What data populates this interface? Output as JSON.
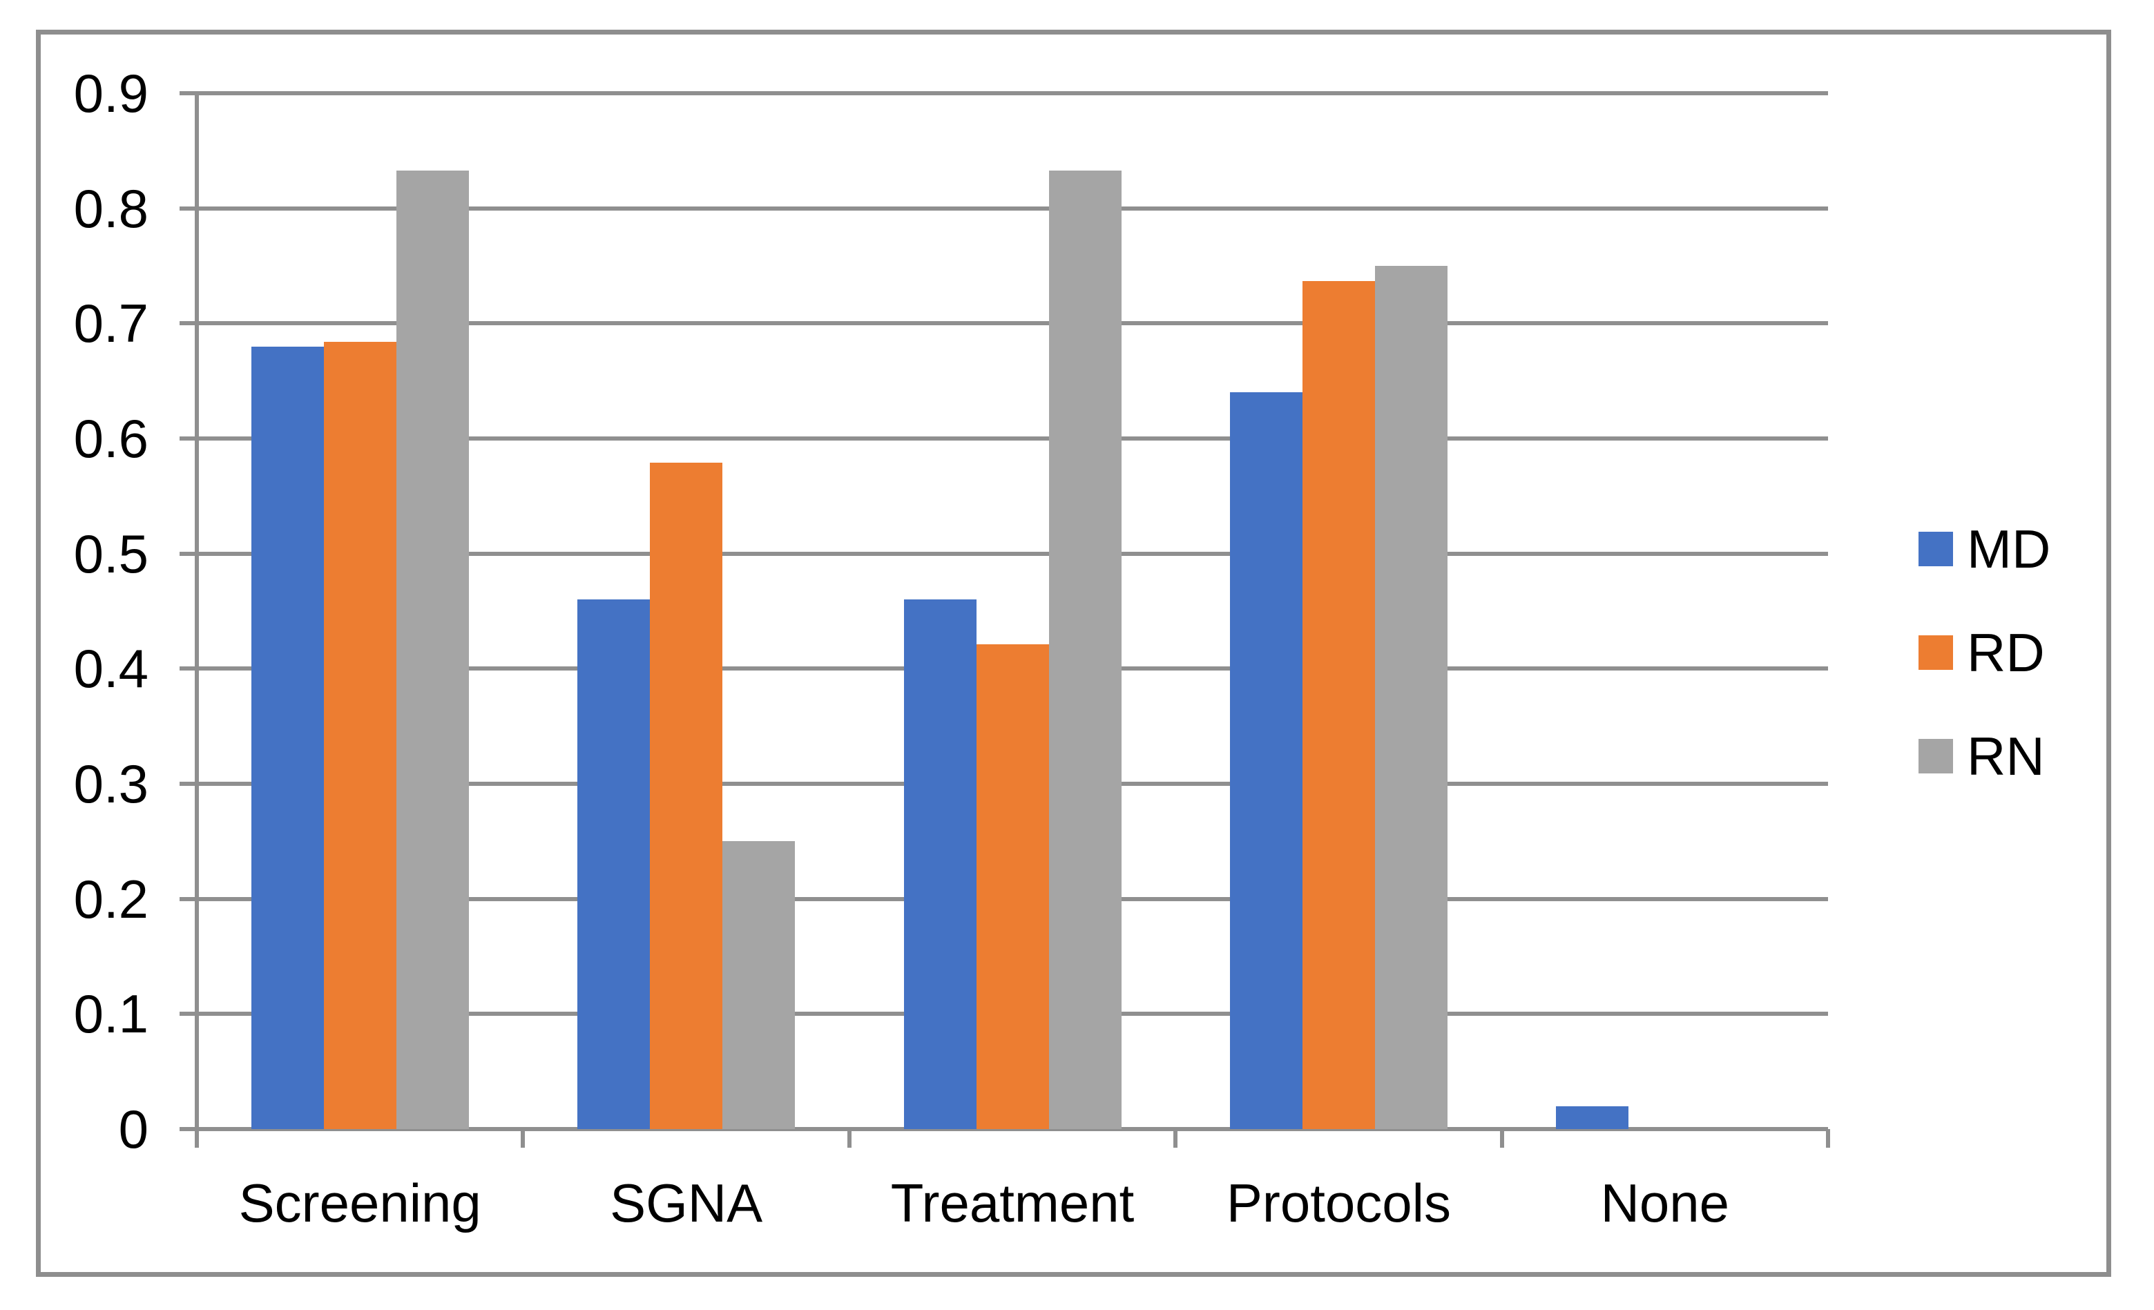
{
  "chart_data": {
    "type": "bar",
    "title": "",
    "xlabel": "",
    "ylabel": "",
    "categories": [
      "Screening",
      "SGNA",
      "Treatment",
      "Protocols",
      "None"
    ],
    "series": [
      {
        "name": "MD",
        "color": "#4472C4",
        "values": [
          0.68,
          0.46,
          0.46,
          0.64,
          0.02
        ]
      },
      {
        "name": "RD",
        "color": "#ED7D31",
        "values": [
          0.684,
          0.579,
          0.421,
          0.737,
          0
        ]
      },
      {
        "name": "RN",
        "color": "#A5A5A5",
        "values": [
          0.833,
          0.25,
          0.833,
          0.75,
          0
        ]
      }
    ],
    "ylim": [
      0,
      0.9
    ],
    "ytick_interval": 0.1,
    "ytick_labels": [
      "0",
      "0.1",
      "0.2",
      "0.3",
      "0.4",
      "0.5",
      "0.6",
      "0.7",
      "0.8",
      "0.9"
    ],
    "grid": true,
    "legend_position": "right",
    "legend": [
      "MD",
      "RD",
      "RN"
    ]
  },
  "colors": {
    "background": "#FFFFFF",
    "frame_border": "#8E8E8E",
    "axis_line": "#8F8F8F",
    "gridline": "#8F8F8F",
    "text": "#000000"
  }
}
